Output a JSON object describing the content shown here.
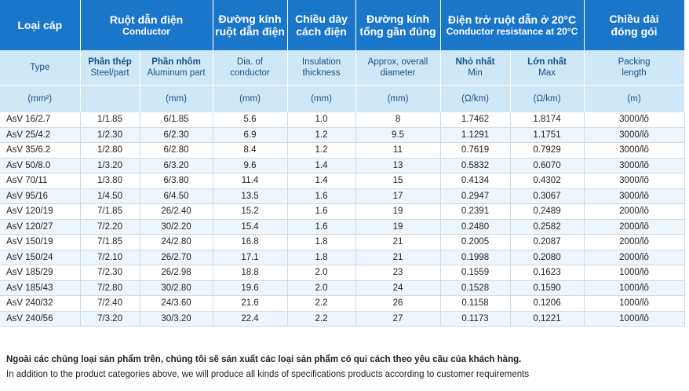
{
  "header": {
    "loai_cap": "Loại cáp",
    "ruot_dan_vi": "Ruột dẫn điện",
    "ruot_dan_en": "Conductor",
    "duong_kinh_ruot_vi_1": "Đường kính",
    "duong_kinh_ruot_vi_2": "ruột dẫn điện",
    "chieu_day_vi_1": "Chiều dày",
    "chieu_day_vi_2": "cách điện",
    "duong_kinh_tong_vi_1": "Đường kính",
    "duong_kinh_tong_vi_2": "tổng gần đúng",
    "dien_tro_vi": "Điện trở ruột dẫn ở 20°C",
    "dien_tro_en": "Conductor resistance at 20°C",
    "chieu_dai_vi_1": "Chiều dài",
    "chieu_dai_vi_2": "đóng gói"
  },
  "subheader": {
    "type": "Type",
    "steel_vi": "Phần thép",
    "steel_en": "Steel/part",
    "alu_vi": "Phần nhôm",
    "alu_en": "Aluminum part",
    "dia_1": "Dia. of",
    "dia_2": "conductor",
    "ins_1": "Insulation",
    "ins_2": "thickness",
    "approx_1": "Approx, overall",
    "approx_2": "diameter",
    "min_vi": "Nhỏ nhất",
    "min_en": "Min",
    "max_vi": "Lớn nhất",
    "max_en": "Max",
    "pack_1": "Packing",
    "pack_2": "length"
  },
  "units": {
    "type": "(mm²)",
    "steel": "",
    "alu": "(mm)",
    "dia": "(mm)",
    "ins": "(mm)",
    "approx": "(mm)",
    "min": "(Ω/km)",
    "max": "(Ω/km)",
    "pack": "(m)"
  },
  "rows": [
    [
      "AsV 16/2.7",
      "1/1.85",
      "6/1.85",
      "5.6",
      "1.0",
      "8",
      "1.7462",
      "1.8174",
      "3000/lô"
    ],
    [
      "AsV 25/4.2",
      "1/2.30",
      "6/2.30",
      "6.9",
      "1.2",
      "9.5",
      "1.1291",
      "1.1751",
      "3000/lô"
    ],
    [
      "AsV 35/6.2",
      "1/2.80",
      "6/2.80",
      "8.4",
      "1.2",
      "11",
      "0.7619",
      "0.7929",
      "3000/lô"
    ],
    [
      "AsV 50/8.0",
      "1/3.20",
      "6/3.20",
      "9.6",
      "1.4",
      "13",
      "0.5832",
      "0.6070",
      "3000/lô"
    ],
    [
      "AsV 70/11",
      "1/3.80",
      "6/3.80",
      "11.4",
      "1.4",
      "15",
      "0.4134",
      "0.4302",
      "3000/lô"
    ],
    [
      "AsV 95/16",
      "1/4.50",
      "6/4.50",
      "13.5",
      "1.6",
      "17",
      "0.2947",
      "0.3067",
      "3000/lô"
    ],
    [
      "AsV 120/19",
      "7/1.85",
      "26/2.40",
      "15.2",
      "1.6",
      "19",
      "0.2391",
      "0.2489",
      "2000/lô"
    ],
    [
      "AsV 120/27",
      "7/2.20",
      "30/2.20",
      "15.4",
      "1.6",
      "19",
      "0.2480",
      "0.2582",
      "2000/lô"
    ],
    [
      "AsV 150/19",
      "7/1.85",
      "24/2.80",
      "16.8",
      "1.8",
      "21",
      "0.2005",
      "0.2087",
      "2000/lô"
    ],
    [
      "AsV 150/24",
      "7/2.10",
      "26/2.70",
      "17.1",
      "1.8",
      "21",
      "0.1998",
      "0.2080",
      "2000/lô"
    ],
    [
      "AsV 185/29",
      "7/2.30",
      "26/2.98",
      "18.8",
      "2.0",
      "23",
      "0.1559",
      "0.1623",
      "1000/lô"
    ],
    [
      "AsV 185/43",
      "7/2.80",
      "30/2.80",
      "19.6",
      "2.0",
      "24",
      "0.1528",
      "0.1590",
      "1000/lô"
    ],
    [
      "AsV 240/32",
      "7/2.40",
      "24/3.60",
      "21.6",
      "2.2",
      "26",
      "0.1158",
      "0.1206",
      "1000/lô"
    ],
    [
      "AsV 240/56",
      "7/3.20",
      "30/3.20",
      "22.4",
      "2.2",
      "27",
      "0.1173",
      "0.1221",
      "1000/lô"
    ]
  ],
  "notes": {
    "vi": "Ngoài các chủng loại sản phẩm trên, chúng tôi sẽ sản xuất các loại sản phẩm có qui cách theo yêu cầu của khách hàng.",
    "en": "In addition to the product categories above, we will produce all kinds of specifications products according to customer requirements"
  }
}
